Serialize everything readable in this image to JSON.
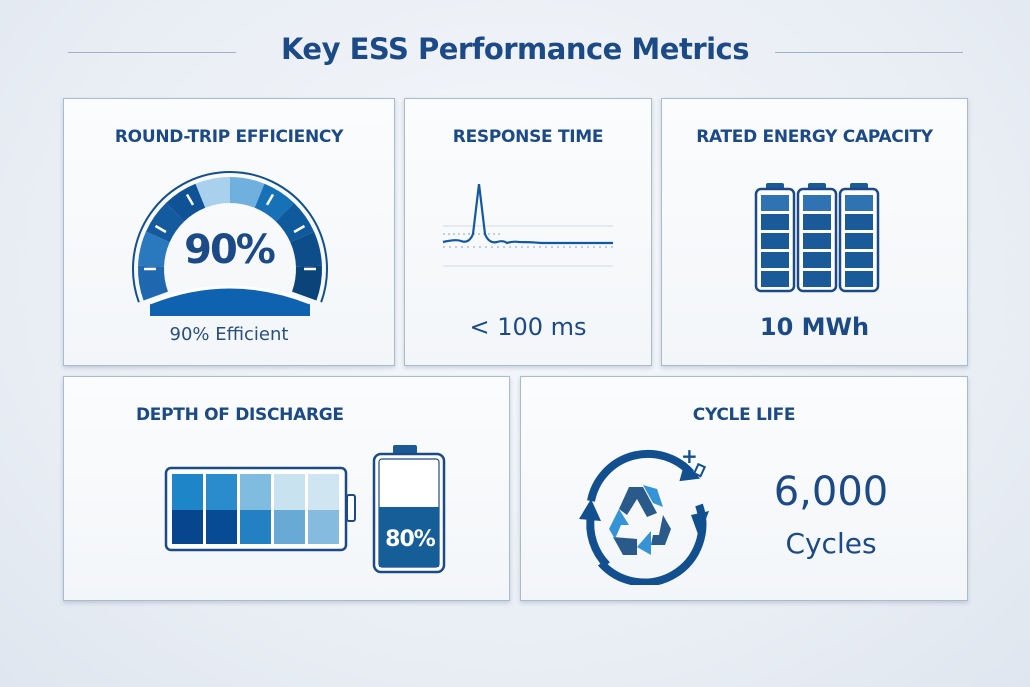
{
  "title": "Key ESS Performance Metrics",
  "colors": {
    "navy": "#1b4a86",
    "blue": "#0f5ea8",
    "light": "#3a97d4"
  },
  "cards": {
    "efficiency": {
      "title": "ROUND-TRIP EFFICIENCY",
      "gauge_value": "90%",
      "caption": "90% Efficient",
      "level_percent": 90
    },
    "response": {
      "title": "RESPONSE TIME",
      "value": "< 100 ms"
    },
    "capacity": {
      "title": "RATED ENERGY CAPACITY",
      "value": "10 MWh",
      "icon": "battery-icon"
    },
    "dod": {
      "title": "DEPTH OF DISCHARGE",
      "battery_label": "80%",
      "level_percent": 80
    },
    "cycle": {
      "title": "CYCLE LIFE",
      "value": "6,000",
      "unit": "Cycles",
      "icon": "recycle-icon"
    }
  }
}
